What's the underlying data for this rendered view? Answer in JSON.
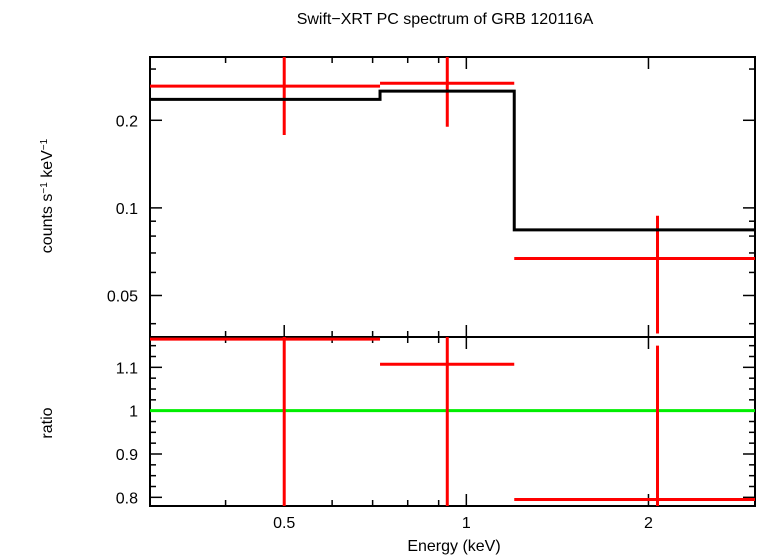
{
  "chart_data": {
    "type": "line",
    "title": "Swift−XRT PC spectrum of GRB 120116A",
    "xlabel": "Energy (keV)",
    "x_scale": "log",
    "xlim": [
      0.3,
      3.0
    ],
    "x_ticks": [
      {
        "value": 0.5,
        "label": "0.5"
      },
      {
        "value": 1,
        "label": "1"
      },
      {
        "value": 2,
        "label": "2"
      }
    ],
    "panels": [
      {
        "name": "spectrum",
        "ylabel_main": "counts s",
        "ylabel_sup1": "−1",
        "ylabel_mid": " keV",
        "ylabel_sup2": "−1",
        "y_scale": "log",
        "ylim": [
          0.036,
          0.33
        ],
        "y_ticks": [
          {
            "value": 0.05,
            "label": "0.05"
          },
          {
            "value": 0.1,
            "label": "0.1"
          },
          {
            "value": 0.2,
            "label": "0.2"
          }
        ],
        "series": [
          {
            "role": "data",
            "color": "#ff0000",
            "points": [
              {
                "xlo": 0.3,
                "xhi": 0.72,
                "x": 0.5,
                "y": 0.262,
                "ylo": 0.178,
                "yhi": 0.33
              },
              {
                "xlo": 0.72,
                "xhi": 1.2,
                "x": 0.93,
                "y": 0.268,
                "ylo": 0.19,
                "yhi": 0.33
              },
              {
                "xlo": 1.2,
                "xhi": 3.0,
                "x": 2.07,
                "y": 0.067,
                "ylo": 0.037,
                "yhi": 0.094
              }
            ]
          },
          {
            "role": "model",
            "color": "#000000",
            "steps": [
              {
                "xlo": 0.3,
                "xhi": 0.72,
                "y": 0.236
              },
              {
                "xlo": 0.72,
                "xhi": 1.2,
                "y": 0.252
              },
              {
                "xlo": 1.2,
                "xhi": 3.0,
                "y": 0.084
              }
            ]
          }
        ]
      },
      {
        "name": "ratio",
        "ylabel_main": "ratio",
        "y_scale": "linear",
        "ylim": [
          0.78,
          1.17
        ],
        "y_ticks": [
          {
            "value": 0.8,
            "label": "0.8"
          },
          {
            "value": 0.9,
            "label": "0.9"
          },
          {
            "value": 1,
            "label": "1"
          },
          {
            "value": 1.1,
            "label": "1.1"
          }
        ],
        "reference_line": {
          "y": 1.0,
          "color": "#00ee00"
        },
        "series": [
          {
            "role": "ratio",
            "color": "#ff0000",
            "points": [
              {
                "xlo": 0.3,
                "xhi": 0.72,
                "x": 0.5,
                "y": 1.165,
                "ylo": 0.78,
                "yhi": 1.17
              },
              {
                "xlo": 0.72,
                "xhi": 1.2,
                "x": 0.93,
                "y": 1.107,
                "ylo": 0.78,
                "yhi": 1.17
              },
              {
                "xlo": 1.2,
                "xhi": 3.0,
                "x": 2.07,
                "y": 0.795,
                "ylo": 0.78,
                "yhi": 1.15
              }
            ]
          }
        ]
      }
    ]
  }
}
